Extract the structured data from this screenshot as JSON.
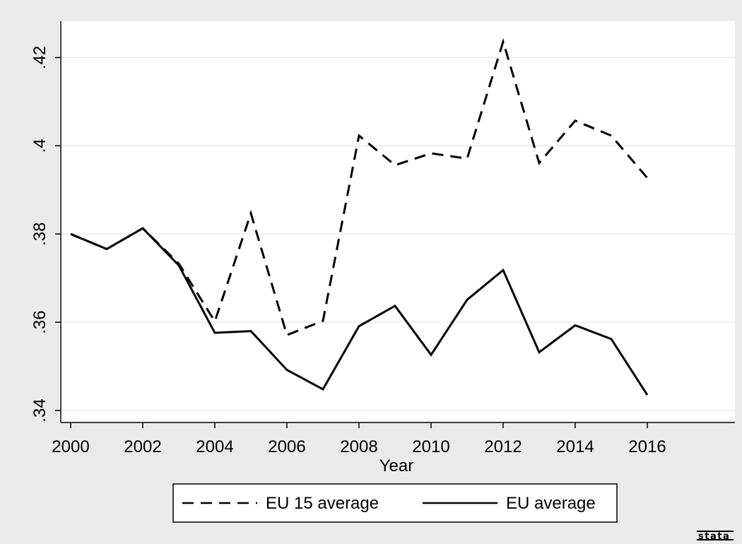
{
  "chart_data": {
    "type": "line",
    "xlabel": "Year",
    "ylabel": "",
    "xlim": [
      2000,
      2018
    ],
    "ylim": [
      0.34,
      0.426
    ],
    "x_ticks": [
      2000,
      2002,
      2004,
      2006,
      2008,
      2010,
      2012,
      2014,
      2016
    ],
    "x_tick_labels": [
      "2000",
      "2002",
      "2004",
      "2006",
      "2008",
      "2010",
      "2012",
      "2014",
      "2016"
    ],
    "y_ticks": [
      0.34,
      0.36,
      0.38,
      0.4,
      0.42
    ],
    "y_tick_labels": [
      ".34",
      ".36",
      ".38",
      ".4",
      ".42"
    ],
    "grid": true,
    "legend_position": "bottom",
    "x": [
      2000,
      2001,
      2002,
      2003,
      2004,
      2005,
      2006,
      2007,
      2008,
      2009,
      2010,
      2011,
      2012,
      2013,
      2014,
      2015,
      2016
    ],
    "series": [
      {
        "name": "EU 15 average",
        "style": "dashed",
        "color": "#000000",
        "values": [
          0.38,
          0.3766,
          0.3813,
          0.3733,
          0.3602,
          0.3847,
          0.3571,
          0.3603,
          0.4023,
          0.3956,
          0.3983,
          0.3971,
          0.4236,
          0.3961,
          0.4057,
          0.4023,
          0.3927
        ]
      },
      {
        "name": "EU average",
        "style": "solid",
        "color": "#000000",
        "values": [
          0.38,
          0.3766,
          0.3813,
          0.3729,
          0.3576,
          0.358,
          0.3492,
          0.3448,
          0.3591,
          0.3637,
          0.3526,
          0.3651,
          0.3718,
          0.3532,
          0.3593,
          0.3562,
          0.3435
        ]
      }
    ]
  },
  "watermark": {
    "text": "stata"
  },
  "colors": {
    "outer_background": "#eaeaea",
    "plot_background": "#ffffff",
    "grid": "#eaeaea"
  }
}
